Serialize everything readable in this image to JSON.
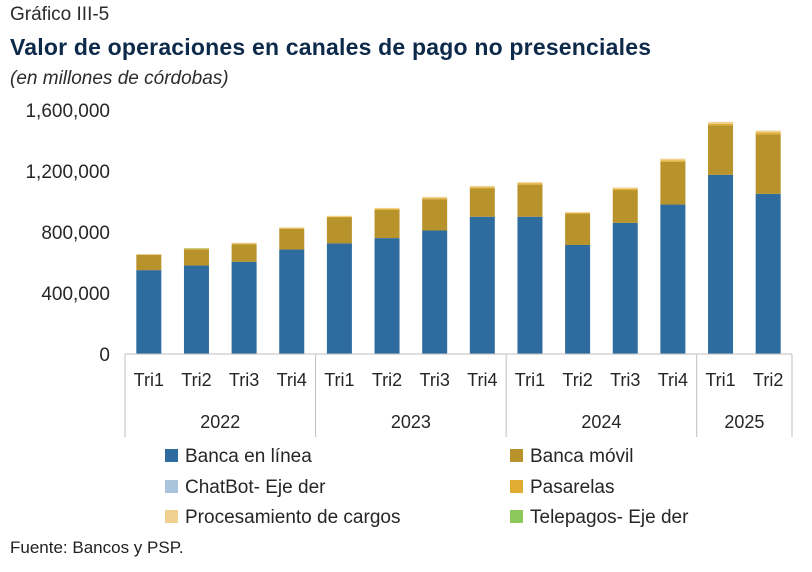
{
  "header": {
    "figure_label": "Gráfico III-5",
    "title": "Valor de operaciones en canales de pago no presenciales",
    "subtitle": "(en millones de córdobas)"
  },
  "footer": {
    "source": "Fuente: Bancos y PSP."
  },
  "chart_data": {
    "type": "bar",
    "stacked": true,
    "title": "Valor de operaciones en canales de pago no presenciales",
    "subtitle": "(en millones de córdobas)",
    "xlabel": "",
    "ylabel": "",
    "ylim": [
      0,
      1600000
    ],
    "yticks": [
      0,
      400000,
      800000,
      1200000,
      1600000
    ],
    "ytick_labels": [
      "0",
      "400,000",
      "800,000",
      "1,200,000",
      "1,600,000"
    ],
    "grid": false,
    "legend_position": "bottom",
    "categories": [
      "Tri1",
      "Tri2",
      "Tri3",
      "Tri4",
      "Tri1",
      "Tri2",
      "Tri3",
      "Tri4",
      "Tri1",
      "Tri2",
      "Tri3",
      "Tri4",
      "Tri1",
      "Tri2"
    ],
    "groups": [
      {
        "label": "2022",
        "count": 4
      },
      {
        "label": "2023",
        "count": 4
      },
      {
        "label": "2024",
        "count": 4
      },
      {
        "label": "2025",
        "count": 2
      }
    ],
    "series": [
      {
        "name": "Banca en línea",
        "color": "#2e6b9e",
        "values": [
          550000,
          580000,
          605000,
          685000,
          725000,
          760000,
          810000,
          900000,
          900000,
          715000,
          860000,
          980000,
          1175000,
          1050000
        ]
      },
      {
        "name": "Banca móvil",
        "color": "#b8922a",
        "values": [
          100000,
          105000,
          115000,
          135000,
          170000,
          185000,
          205000,
          185000,
          210000,
          205000,
          215000,
          280000,
          325000,
          390000
        ]
      },
      {
        "name": "ChatBot- Eje der",
        "color": "#a9c4dc",
        "values": [
          0,
          0,
          0,
          0,
          0,
          0,
          0,
          0,
          0,
          0,
          0,
          0,
          0,
          0
        ]
      },
      {
        "name": "Pasarelas",
        "color": "#e0ad32",
        "values": [
          2000,
          3000,
          4000,
          5000,
          5000,
          6000,
          7000,
          8000,
          8000,
          5000,
          8000,
          10000,
          10000,
          12000
        ]
      },
      {
        "name": "Procesamiento de cargos",
        "color": "#efd08e",
        "values": [
          3000,
          4000,
          5000,
          5000,
          6000,
          7000,
          8000,
          9000,
          9000,
          6000,
          9000,
          11000,
          12000,
          13000
        ]
      },
      {
        "name": "Telepagos- Eje der",
        "color": "#8cc85b",
        "values": [
          0,
          3000,
          0,
          0,
          0,
          0,
          0,
          0,
          0,
          0,
          0,
          0,
          0,
          0
        ]
      }
    ]
  }
}
